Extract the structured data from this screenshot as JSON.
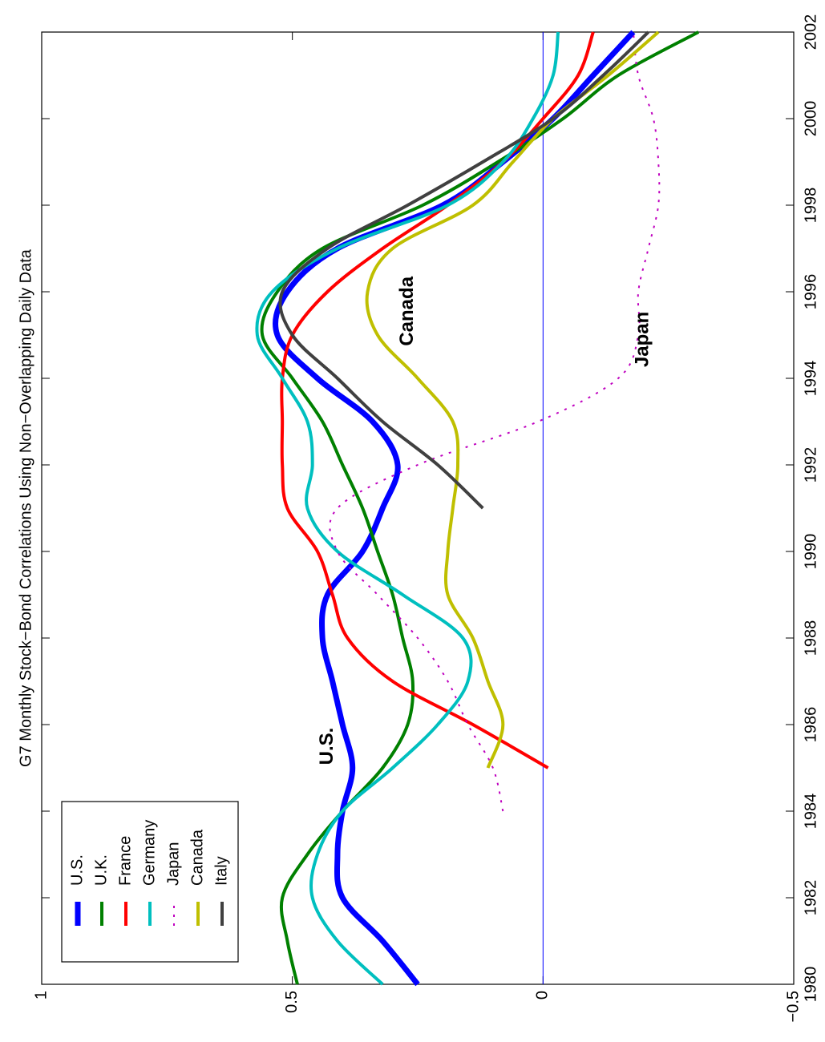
{
  "chart_data": {
    "type": "line",
    "title": "G7 Monthly Stock−Bond Correlations Using Non−Overlapping Daily Data",
    "x": [
      1980,
      1981,
      1982,
      1983,
      1984,
      1985,
      1986,
      1987,
      1988,
      1989,
      1990,
      1991,
      1992,
      1993,
      1994,
      1995,
      1996,
      1997,
      1998,
      1999,
      2000,
      2001,
      2002
    ],
    "series": [
      {
        "name": "U.S.",
        "color": "#0000ff",
        "width": 7,
        "values": [
          0.25,
          0.32,
          0.4,
          0.41,
          0.4,
          0.38,
          0.4,
          0.42,
          0.44,
          0.43,
          0.36,
          0.32,
          0.29,
          0.34,
          0.45,
          0.53,
          0.51,
          0.41,
          0.2,
          0.08,
          -0.02,
          -0.1,
          -0.18
        ]
      },
      {
        "name": "U.K.",
        "color": "#008000",
        "width": 4,
        "values": [
          0.49,
          0.51,
          0.52,
          0.47,
          0.4,
          0.32,
          0.27,
          0.26,
          0.28,
          0.3,
          0.33,
          0.36,
          0.4,
          0.44,
          0.5,
          0.56,
          0.53,
          0.44,
          0.24,
          0.09,
          -0.04,
          -0.15,
          -0.31
        ]
      },
      {
        "name": "France",
        "color": "#ff0000",
        "width": 4,
        "values": [
          null,
          null,
          null,
          null,
          null,
          -0.01,
          0.14,
          0.3,
          0.39,
          0.42,
          0.45,
          0.51,
          0.52,
          0.52,
          0.52,
          0.5,
          0.43,
          0.32,
          0.19,
          0.08,
          0.0,
          -0.07,
          -0.1
        ]
      },
      {
        "name": "Germany",
        "color": "#00bfbf",
        "width": 4,
        "values": [
          0.32,
          0.41,
          0.46,
          0.45,
          0.4,
          0.3,
          0.21,
          0.15,
          0.16,
          0.28,
          0.41,
          0.47,
          0.46,
          0.47,
          0.52,
          0.57,
          0.54,
          0.41,
          0.19,
          0.08,
          0.02,
          -0.02,
          -0.03
        ]
      },
      {
        "name": "Japan",
        "color": "#bf00bf",
        "width": 2,
        "dashed": true,
        "values": [
          null,
          null,
          null,
          null,
          0.08,
          0.1,
          0.15,
          0.19,
          0.25,
          0.33,
          0.41,
          0.41,
          0.25,
          0.01,
          -0.15,
          -0.19,
          -0.19,
          -0.21,
          -0.23,
          -0.23,
          -0.22,
          -0.19,
          -0.18
        ]
      },
      {
        "name": "Canada",
        "color": "#bfbf00",
        "width": 4,
        "values": [
          null,
          null,
          null,
          null,
          null,
          0.11,
          0.08,
          0.11,
          0.14,
          0.19,
          0.19,
          0.18,
          0.17,
          0.18,
          0.25,
          0.33,
          0.35,
          0.3,
          0.14,
          0.06,
          -0.02,
          -0.13,
          -0.23
        ]
      },
      {
        "name": "Italy",
        "color": "#404040",
        "width": 4,
        "values": [
          null,
          null,
          null,
          null,
          null,
          null,
          null,
          null,
          null,
          null,
          null,
          0.12,
          0.21,
          0.32,
          0.41,
          0.5,
          0.52,
          0.43,
          0.27,
          0.12,
          -0.02,
          -0.12,
          -0.21
        ]
      }
    ],
    "annotations": [
      {
        "text": "U.S.",
        "x": 1985.5,
        "y": 0.43
      },
      {
        "text": "Canada",
        "x": 1995.55,
        "y": 0.27
      },
      {
        "text": "Japan",
        "x": 1994.9,
        "y": -0.2
      }
    ],
    "reference_line": 0,
    "xlim": [
      1980,
      2002
    ],
    "xticks": [
      1980,
      1982,
      1984,
      1986,
      1988,
      1990,
      1992,
      1994,
      1996,
      1998,
      2000,
      2002
    ],
    "ylim": [
      -0.5,
      1
    ],
    "yticks": [
      {
        "value": -0.5,
        "label": "−0.5"
      },
      0,
      0.5,
      1
    ],
    "legend": "upper left",
    "rotated": true
  }
}
